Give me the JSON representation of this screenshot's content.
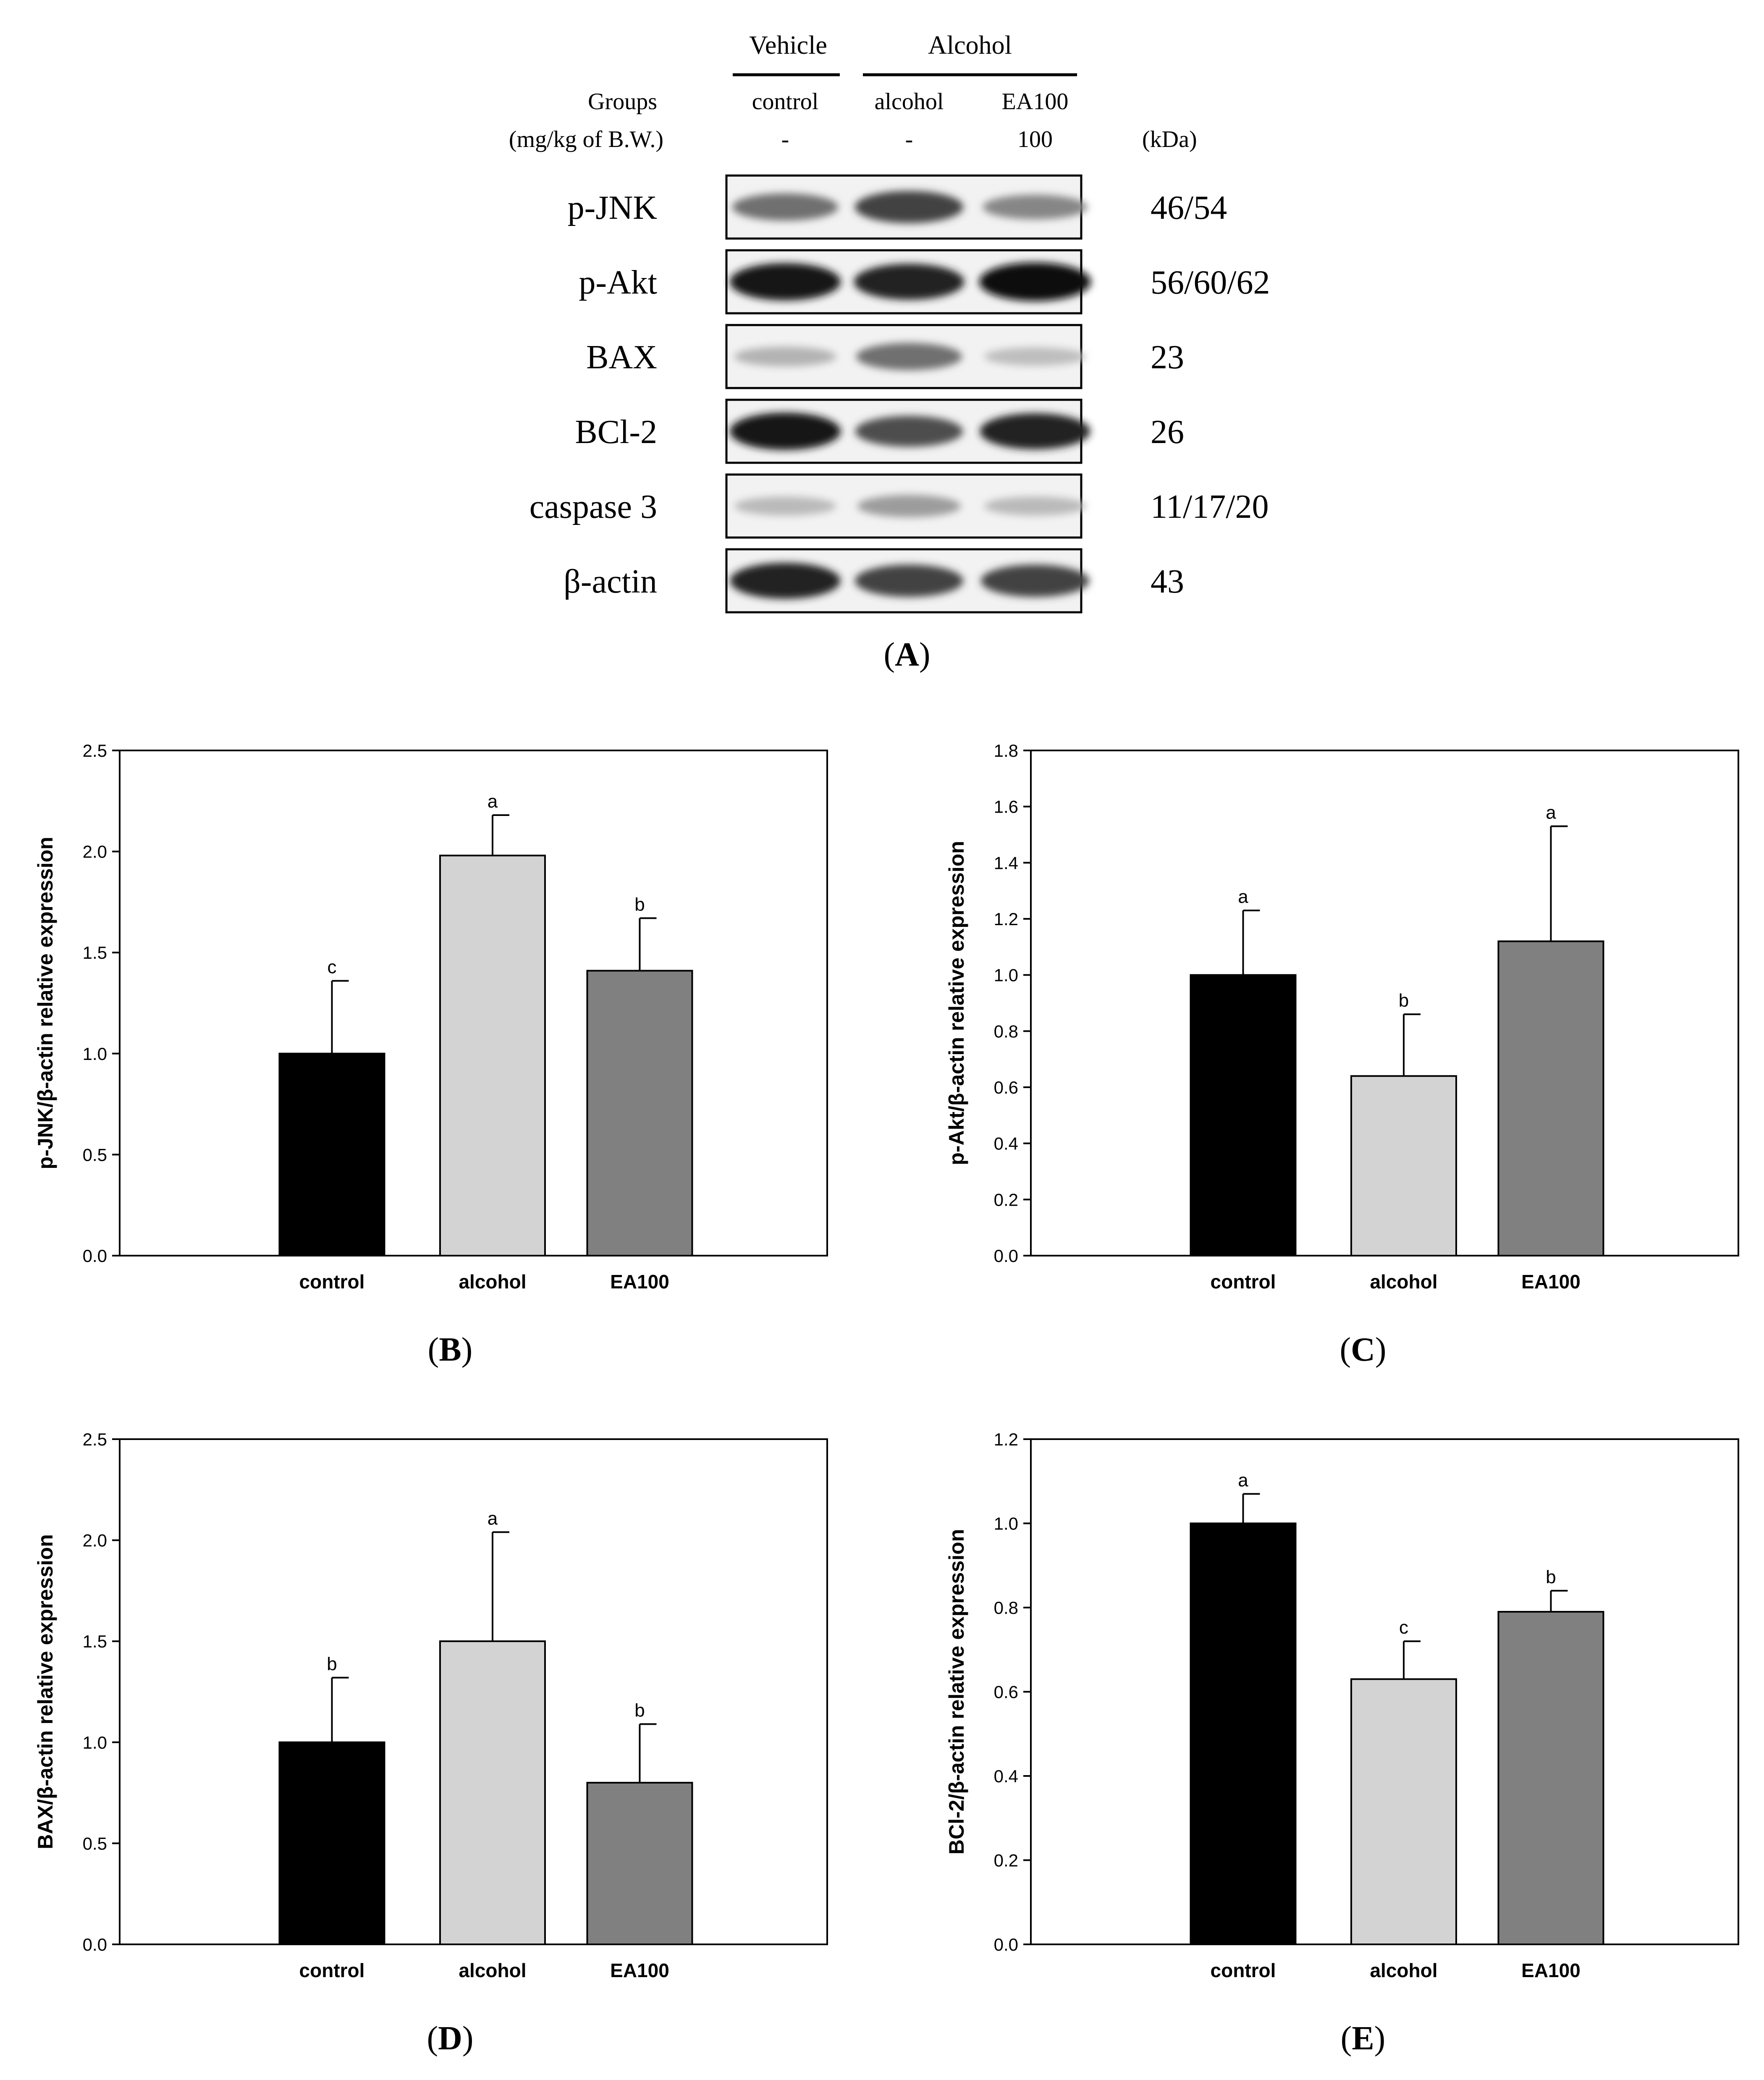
{
  "blot": {
    "panel_label": "A",
    "treatments": [
      {
        "name": "Vehicle"
      },
      {
        "name": "Alcohol"
      }
    ],
    "groups_label": "Groups",
    "dose_label": "(mg/kg of B.W.)",
    "kda_label": "(kDa)",
    "lanes": [
      {
        "group": "control",
        "dose": "-"
      },
      {
        "group": "alcohol",
        "dose": "-"
      },
      {
        "group": "EA100",
        "dose": "100"
      }
    ],
    "proteins": [
      {
        "name": "p-JNK",
        "kda": "46/54",
        "bands": [
          0.55,
          0.75,
          0.45
        ]
      },
      {
        "name": "p-Akt",
        "kda": "56/60/62",
        "bands": [
          0.95,
          0.9,
          1.0
        ]
      },
      {
        "name": "BAX",
        "kda": "23",
        "bands": [
          0.25,
          0.55,
          0.2
        ]
      },
      {
        "name": "BCl-2",
        "kda": "26",
        "bands": [
          0.95,
          0.7,
          0.9
        ]
      },
      {
        "name": "caspase 3",
        "kda": "11/17/20",
        "bands": [
          0.22,
          0.35,
          0.22
        ]
      },
      {
        "name": "β-actin",
        "kda": "43",
        "bands": [
          0.9,
          0.75,
          0.75
        ]
      }
    ]
  },
  "colors": {
    "control": "#000000",
    "alcohol": "#d3d3d3",
    "EA100": "#808080"
  },
  "chart_data": [
    {
      "panel_label": "B",
      "type": "bar",
      "categories": [
        "control",
        "alcohol",
        "EA100"
      ],
      "values": [
        1.0,
        1.98,
        1.41
      ],
      "errors": [
        0.36,
        0.2,
        0.26
      ],
      "letters": [
        "c",
        "a",
        "b"
      ],
      "ylabel": "p-JNK/β-actin relative expression",
      "ylim": [
        0,
        2.5
      ],
      "yticks": [
        "0.0",
        "0.5",
        "1.0",
        "1.5",
        "2.0",
        "2.5"
      ],
      "grid": false
    },
    {
      "panel_label": "C",
      "type": "bar",
      "categories": [
        "control",
        "alcohol",
        "EA100"
      ],
      "values": [
        1.0,
        0.64,
        1.12
      ],
      "errors": [
        0.23,
        0.22,
        0.41
      ],
      "letters": [
        "a",
        "b",
        "a"
      ],
      "ylabel": "p-Akt/β-actin relative expression",
      "ylim": [
        0,
        1.8
      ],
      "yticks": [
        "0.0",
        "0.2",
        "0.4",
        "0.6",
        "0.8",
        "1.0",
        "1.2",
        "1.4",
        "1.6",
        "1.8"
      ],
      "grid": false
    },
    {
      "panel_label": "D",
      "type": "bar",
      "categories": [
        "control",
        "alcohol",
        "EA100"
      ],
      "values": [
        1.0,
        1.5,
        0.8
      ],
      "errors": [
        0.32,
        0.54,
        0.29
      ],
      "letters": [
        "b",
        "a",
        "b"
      ],
      "ylabel": "BAX/β-actin relative expression",
      "ylim": [
        0,
        2.5
      ],
      "yticks": [
        "0.0",
        "0.5",
        "1.0",
        "1.5",
        "2.0",
        "2.5"
      ],
      "grid": false
    },
    {
      "panel_label": "E",
      "type": "bar",
      "categories": [
        "control",
        "alcohol",
        "EA100"
      ],
      "values": [
        1.0,
        0.63,
        0.79
      ],
      "errors": [
        0.07,
        0.09,
        0.05
      ],
      "letters": [
        "a",
        "c",
        "b"
      ],
      "ylabel": "BCl-2/β-actin relative expression",
      "ylim": [
        0,
        1.2
      ],
      "yticks": [
        "0.0",
        "0.2",
        "0.4",
        "0.6",
        "0.8",
        "1.0",
        "1.2"
      ],
      "grid": false
    }
  ]
}
